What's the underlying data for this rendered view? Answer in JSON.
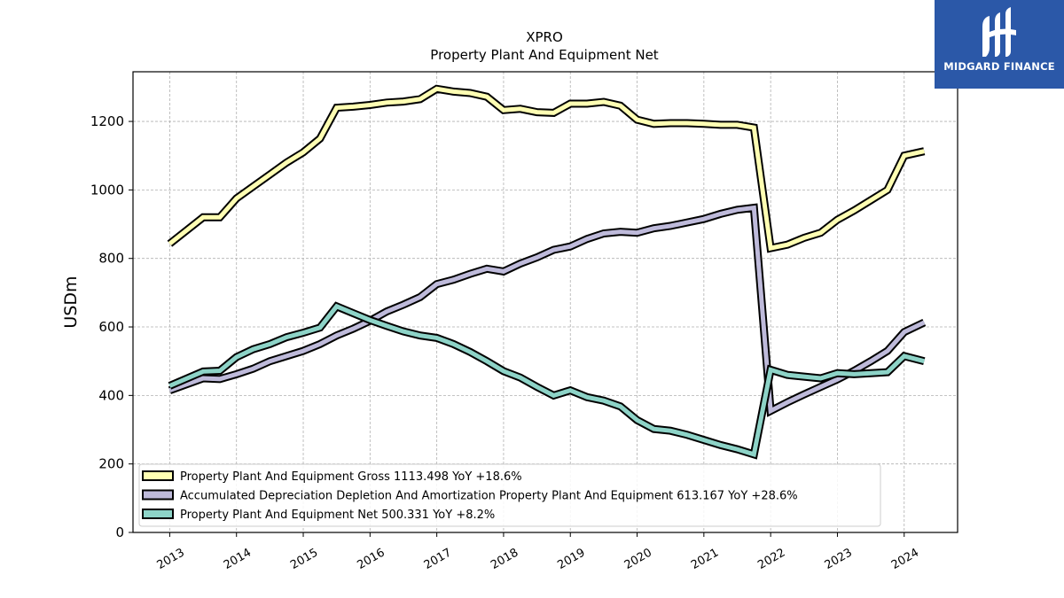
{
  "brand": {
    "name": "MIDGARD FINANCE",
    "color": "#2b58a8",
    "icon": "midgard-logo-icon"
  },
  "chart_data": {
    "type": "line",
    "title": "XPRO",
    "subtitle": "Property Plant And Equipment Net",
    "xlabel": "",
    "ylabel": "USDm",
    "xlim": [
      2012.45,
      2024.8
    ],
    "ylim": [
      0,
      1345
    ],
    "yticks": [
      0,
      200,
      400,
      600,
      800,
      1000,
      1200
    ],
    "xticks": [
      "2013",
      "2014",
      "2015",
      "2016",
      "2017",
      "2018",
      "2019",
      "2020",
      "2021",
      "2022",
      "2023",
      "2024"
    ],
    "grid": true,
    "legend_position": "lower-left",
    "x": [
      2013.0,
      2013.5,
      2013.75,
      2014.0,
      2014.25,
      2014.5,
      2014.75,
      2015.0,
      2015.25,
      2015.5,
      2015.75,
      2016.0,
      2016.25,
      2016.5,
      2016.75,
      2017.0,
      2017.25,
      2017.5,
      2017.75,
      2018.0,
      2018.25,
      2018.5,
      2018.75,
      2019.0,
      2019.25,
      2019.5,
      2019.75,
      2020.0,
      2020.25,
      2020.5,
      2020.75,
      2021.0,
      2021.25,
      2021.5,
      2021.75,
      2022.0,
      2022.25,
      2022.5,
      2022.75,
      2023.0,
      2023.25,
      2023.5,
      2023.75,
      2024.0,
      2024.3
    ],
    "series": [
      {
        "name": "Property Plant And Equipment Gross  1113.498 YoY +18.6%",
        "color": "#ffffb3",
        "values": [
          843,
          920,
          920,
          975,
          1010,
          1045,
          1080,
          1110,
          1150,
          1240,
          1243,
          1248,
          1255,
          1258,
          1265,
          1295,
          1287,
          1283,
          1272,
          1233,
          1237,
          1227,
          1225,
          1252,
          1252,
          1257,
          1246,
          1205,
          1193,
          1195,
          1195,
          1193,
          1190,
          1190,
          1182,
          830,
          840,
          860,
          875,
          913,
          940,
          970,
          1000,
          1100,
          1113
        ]
      },
      {
        "name": "Accumulated Depreciation Depletion And Amortization Property Plant And Equipment  613.167 YoY +28.6%",
        "color": "#bebada",
        "values": [
          415,
          450,
          448,
          462,
          478,
          500,
          515,
          530,
          550,
          575,
          595,
          618,
          645,
          665,
          687,
          725,
          738,
          755,
          770,
          762,
          785,
          803,
          825,
          835,
          857,
          873,
          878,
          875,
          888,
          895,
          905,
          915,
          930,
          942,
          948,
          355,
          380,
          403,
          425,
          447,
          472,
          500,
          530,
          585,
          613
        ]
      },
      {
        "name": "Property Plant And Equipment Net  500.331 YoY +8.2%",
        "color": "#8dd3c7",
        "values": [
          428,
          470,
          472,
          512,
          535,
          550,
          570,
          583,
          598,
          660,
          640,
          620,
          603,
          587,
          575,
          568,
          550,
          527,
          500,
          471,
          452,
          425,
          400,
          415,
          395,
          385,
          368,
          328,
          302,
          297,
          285,
          270,
          255,
          243,
          228,
          475,
          460,
          455,
          450,
          465,
          462,
          465,
          468,
          515,
          500
        ]
      }
    ]
  }
}
